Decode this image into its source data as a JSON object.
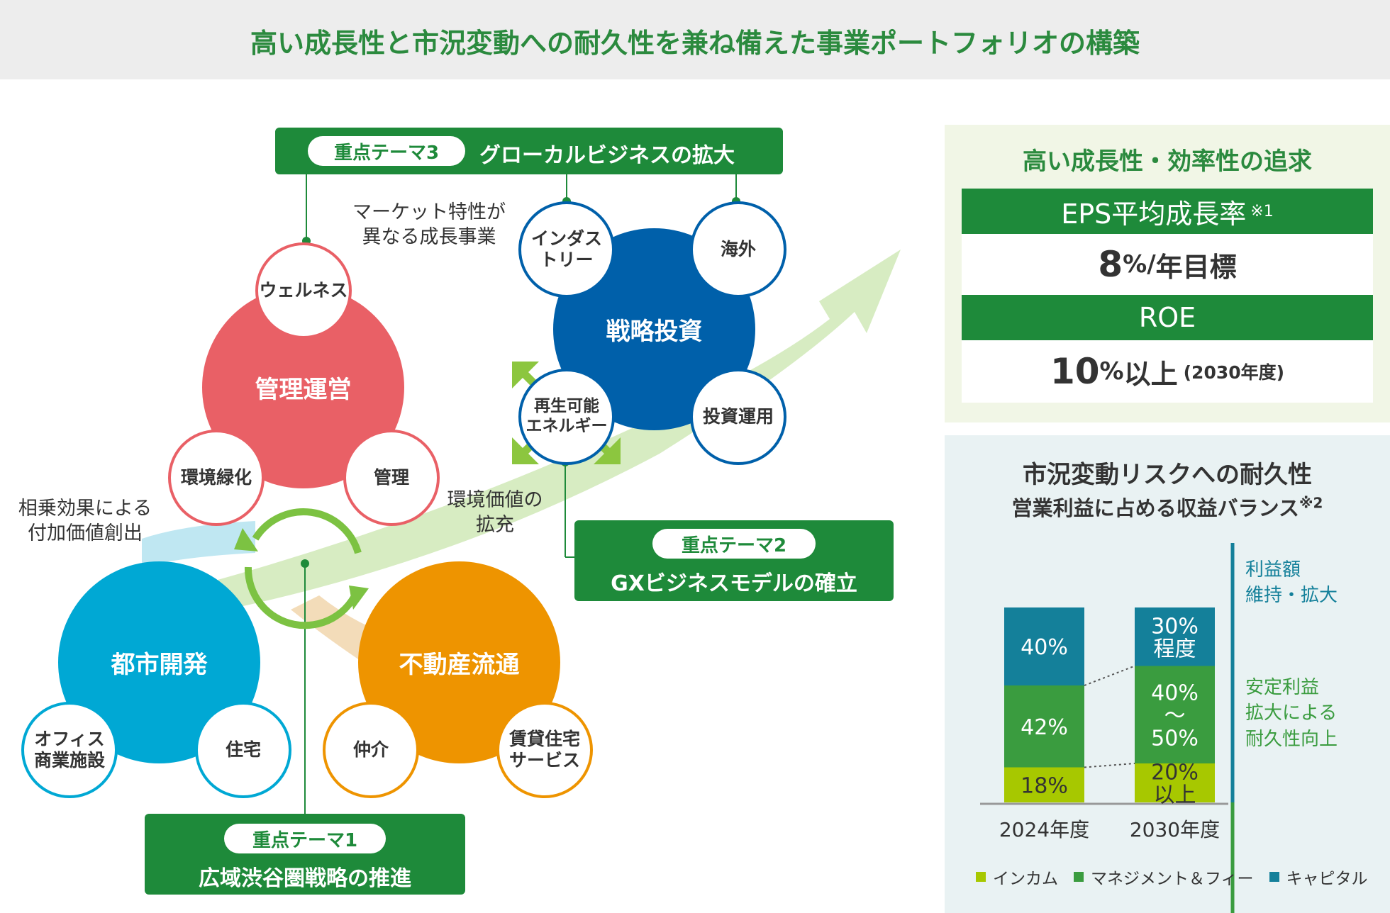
{
  "header": {
    "title": "高い成長性と市況変動への耐久性を兼ね備えた事業ポートフォリオの構築"
  },
  "colors": {
    "red": "#e96066",
    "blue": "#0060aa",
    "cyan": "#00a8d4",
    "orange": "#ee9400",
    "green": "#1e8a3a",
    "lime": "#a7c800",
    "teal": "#14809a"
  },
  "themes": {
    "t3": {
      "pill": "重点テーマ3",
      "title": "グローカルビジネスの拡大"
    },
    "t2": {
      "pill": "重点テーマ2",
      "title": "GXビジネスモデルの確立"
    },
    "t1": {
      "pill": "重点テーマ1",
      "title": "広域渋谷圏戦略の推進"
    }
  },
  "labels": {
    "market": "マーケット特性が\n異なる成長事業",
    "synergy": "相乗効果による\n付加価値創出",
    "env": "環境価値の\n拡充"
  },
  "circles": {
    "kanri_unei": "管理運営",
    "senryaku": "戦略投資",
    "toshi": "都市開発",
    "fudosan": "不動産流通",
    "wellness": "ウェルネス",
    "kankyo": "環境緑化",
    "kanri": "管理",
    "industry": "インダス\nトリー",
    "kaigai": "海外",
    "saisei": "再生可能\nエネルギー",
    "toushi_unyou": "投資運用",
    "office": "オフィス\n商業施設",
    "jutaku": "住宅",
    "chukai": "仲介",
    "chintai": "賃貸住宅\nサービス"
  },
  "growth": {
    "title": "高い成長性・効率性の追求",
    "eps_label": "EPS平均成長率",
    "eps_note": "※1",
    "eps_num": "8",
    "eps_unit": "%/",
    "eps_suffix": "年目標",
    "roe_label": "ROE",
    "roe_num": "10",
    "roe_unit": "%",
    "roe_suffix": "以上",
    "roe_note": "(2030年度)"
  },
  "resilience": {
    "title": "市況変動リスクへの耐久性",
    "subtitle": "営業利益に占める収益バランス",
    "subtitle_note": "※2",
    "bracket_top": "利益額\n維持・拡大",
    "bracket_bottom": "安定利益\n拡大による\n耐久性向上"
  },
  "chart_data": {
    "type": "bar",
    "stacked": true,
    "categories": [
      "2024年度",
      "2030年度"
    ],
    "series": [
      {
        "name": "インカム",
        "color": "#a7c800",
        "values": [
          18,
          20
        ],
        "labels": [
          "18%",
          "20%\n以上"
        ]
      },
      {
        "name": "マネジメント＆フィー",
        "color": "#3a9c3f",
        "values": [
          42,
          50
        ],
        "labels": [
          "42%",
          "40%\n〜\n50%"
        ]
      },
      {
        "name": "キャピタル",
        "color": "#14809a",
        "values": [
          40,
          30
        ],
        "labels": [
          "40%",
          "30%\n程度"
        ]
      }
    ]
  },
  "legend": [
    "インカム",
    "マネジメント＆フィー",
    "キャピタル"
  ]
}
